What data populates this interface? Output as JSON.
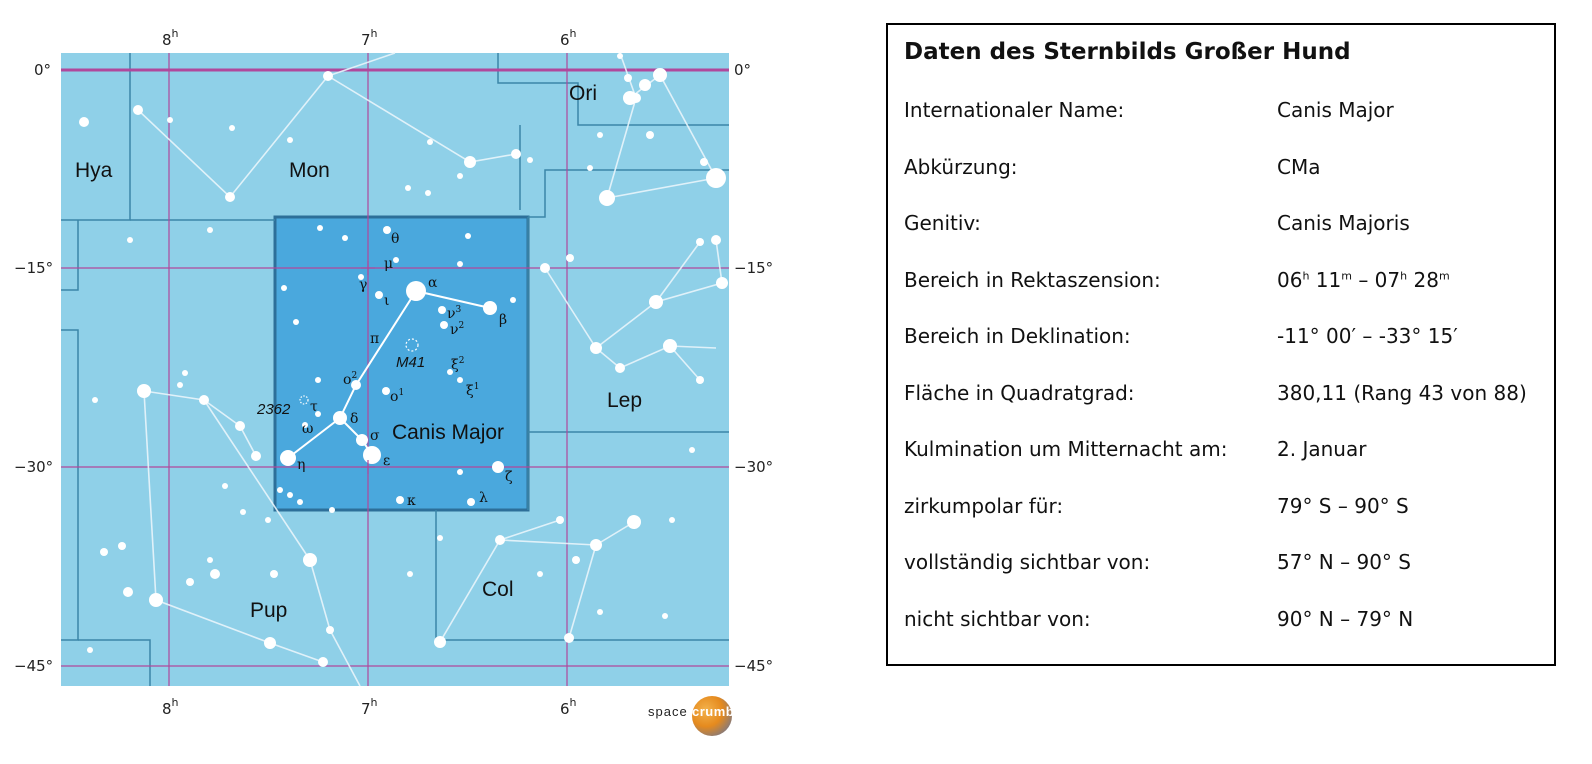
{
  "chart": {
    "ra_labels": [
      {
        "h": "8",
        "sup": "h"
      },
      {
        "h": "7",
        "sup": "h"
      },
      {
        "h": "6",
        "sup": "h"
      }
    ],
    "dec_labels": [
      "0°",
      "−15°",
      "−30°",
      "−45°"
    ],
    "constellations": [
      "Ori",
      "Hya",
      "Mon",
      "Lep",
      "Pup",
      "Col"
    ],
    "main_label": "Canis Major",
    "object_labels": {
      "m41": "M41",
      "ngc2362": "2362"
    },
    "greek": {
      "theta": "θ",
      "mu": "μ",
      "gamma": "γ",
      "iota": "ι",
      "alpha": "α",
      "beta": "β",
      "pi": "π",
      "nu3": "ν",
      "nu3_sup": "3",
      "nu2": "ν",
      "nu2_sup": "2",
      "xi2": "ξ",
      "xi2_sup": "2",
      "xi1": "ξ",
      "xi1_sup": "1",
      "omicron2": "ο",
      "omicron2_sup": "2",
      "omicron1": "ο",
      "omicron1_sup": "1",
      "tau": "τ",
      "omega": "ω",
      "delta": "δ",
      "sigma": "σ",
      "eta": "η",
      "epsilon": "ε",
      "kappa": "κ",
      "lambda": "λ",
      "zeta": "ζ"
    },
    "colors": {
      "sky": "#8fd0e8",
      "highlight": "#4aa8dd",
      "highlight_border": "#2d6f99",
      "grid": "#b0489c",
      "boundary": "#3b86a8",
      "lines": "#e9f5fb",
      "stars": "#ffffff"
    }
  },
  "panel": {
    "title": "Daten des Sternbilds Großer Hund",
    "rows": [
      {
        "key": "Internationaler Name:",
        "value": "Canis Major"
      },
      {
        "key": "Abkürzung:",
        "value": "CMa"
      },
      {
        "key": "Genitiv:",
        "value": "Canis Majoris"
      },
      {
        "key": "Bereich in Rektaszension:",
        "value_parts": {
          "a": "06",
          "a_sup": "h",
          "b": " 11",
          "b_sup": "m",
          "c": " – 07",
          "c_sup": "h",
          "d": " 28",
          "d_sup": "m"
        }
      },
      {
        "key": "Bereich in Deklination:",
        "value": "-11° 00′ – -33° 15′"
      },
      {
        "key": "Fläche in Quadratgrad:",
        "value": "380,11 (Rang 43 von 88)"
      },
      {
        "key": "Kulmination um Mitternacht am:",
        "value": "2. Januar"
      },
      {
        "key": "zirkumpolar für:",
        "value": "79° S – 90° S"
      },
      {
        "key": "vollständig sichtbar von:",
        "value": "57° N – 90° S"
      },
      {
        "key": "nicht sichtbar von:",
        "value": "90° N – 79° N"
      }
    ]
  },
  "brand": {
    "word1": "space",
    "word2": "crumb"
  }
}
